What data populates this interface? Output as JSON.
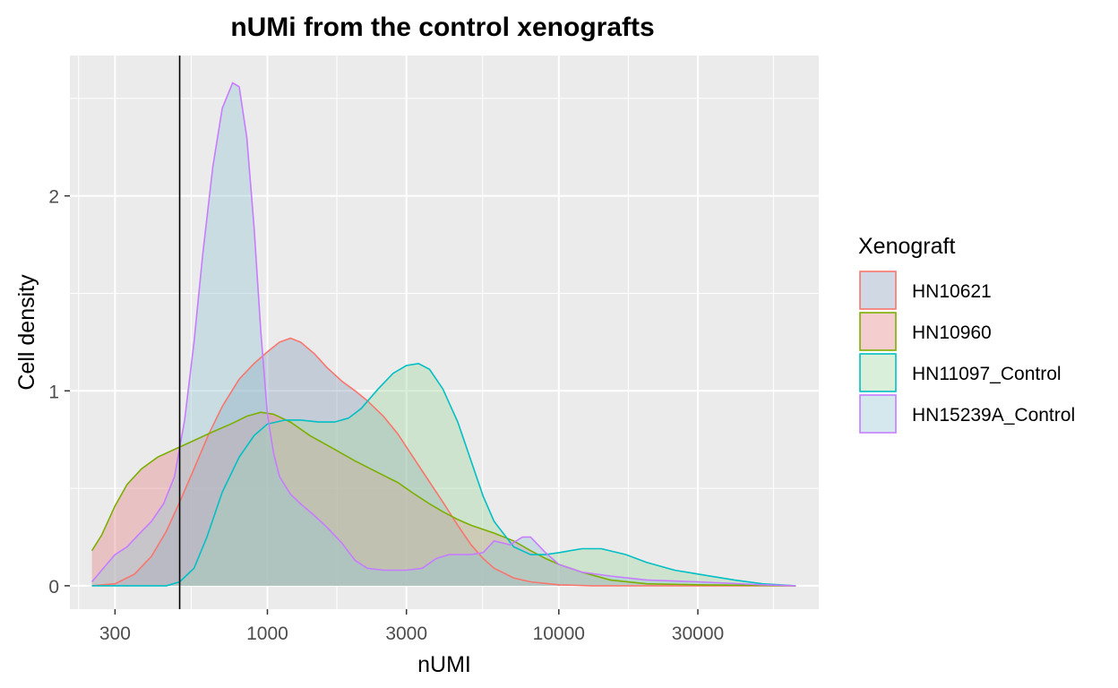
{
  "chart_data": {
    "type": "area",
    "title": "nUMi from the control xenografts",
    "xlabel": "nUMI",
    "ylabel": "Cell density",
    "x_scale": "log10",
    "xlim": [
      210,
      78000
    ],
    "ylim": [
      -0.12,
      2.72
    ],
    "x_ticks": [
      300,
      1000,
      3000,
      10000,
      30000
    ],
    "x_tick_labels": [
      "300",
      "1000",
      "3000",
      "10000",
      "30000"
    ],
    "y_ticks": [
      0,
      1,
      2
    ],
    "y_tick_labels": [
      "0",
      "1",
      "2"
    ],
    "vline_x": 500,
    "grid": true,
    "legend_position": "right",
    "legend_title": "Xenograft",
    "series": [
      {
        "name": "HN10621",
        "line_color": "#F8766D",
        "fill_color": "#8FA1BE",
        "points": [
          [
            250,
            0
          ],
          [
            300,
            0.01
          ],
          [
            350,
            0.06
          ],
          [
            400,
            0.15
          ],
          [
            450,
            0.28
          ],
          [
            500,
            0.43
          ],
          [
            560,
            0.6
          ],
          [
            630,
            0.78
          ],
          [
            700,
            0.92
          ],
          [
            800,
            1.06
          ],
          [
            900,
            1.14
          ],
          [
            1000,
            1.2
          ],
          [
            1100,
            1.25
          ],
          [
            1200,
            1.27
          ],
          [
            1300,
            1.25
          ],
          [
            1450,
            1.19
          ],
          [
            1600,
            1.12
          ],
          [
            1800,
            1.05
          ],
          [
            2000,
            1.0
          ],
          [
            2200,
            0.95
          ],
          [
            2500,
            0.87
          ],
          [
            2800,
            0.78
          ],
          [
            3100,
            0.68
          ],
          [
            3500,
            0.56
          ],
          [
            4000,
            0.43
          ],
          [
            4500,
            0.31
          ],
          [
            5000,
            0.21
          ],
          [
            5500,
            0.14
          ],
          [
            6000,
            0.09
          ],
          [
            7000,
            0.04
          ],
          [
            8000,
            0.02
          ],
          [
            10000,
            0.005
          ],
          [
            13000,
            0
          ],
          [
            65000,
            0
          ]
        ]
      },
      {
        "name": "HN10960",
        "line_color": "#7CAE00",
        "fill_color": "#E58A8C",
        "points": [
          [
            250,
            0.18
          ],
          [
            270,
            0.26
          ],
          [
            300,
            0.41
          ],
          [
            330,
            0.52
          ],
          [
            370,
            0.6
          ],
          [
            420,
            0.66
          ],
          [
            480,
            0.7
          ],
          [
            550,
            0.74
          ],
          [
            650,
            0.79
          ],
          [
            750,
            0.83
          ],
          [
            850,
            0.87
          ],
          [
            950,
            0.89
          ],
          [
            1050,
            0.88
          ],
          [
            1200,
            0.84
          ],
          [
            1400,
            0.77
          ],
          [
            1700,
            0.7
          ],
          [
            2000,
            0.64
          ],
          [
            2400,
            0.58
          ],
          [
            2800,
            0.53
          ],
          [
            3200,
            0.47
          ],
          [
            3600,
            0.42
          ],
          [
            4000,
            0.38
          ],
          [
            4500,
            0.34
          ],
          [
            5000,
            0.31
          ],
          [
            6000,
            0.27
          ],
          [
            7000,
            0.23
          ],
          [
            8000,
            0.18
          ],
          [
            9000,
            0.14
          ],
          [
            10000,
            0.11
          ],
          [
            12000,
            0.07
          ],
          [
            15000,
            0.03
          ],
          [
            20000,
            0.01
          ],
          [
            30000,
            0.005
          ],
          [
            65000,
            0
          ]
        ]
      },
      {
        "name": "HN11097_Control",
        "line_color": "#00BFC4",
        "fill_color": "#A8D8A4",
        "points": [
          [
            250,
            0
          ],
          [
            450,
            0
          ],
          [
            500,
            0.02
          ],
          [
            560,
            0.09
          ],
          [
            620,
            0.25
          ],
          [
            700,
            0.48
          ],
          [
            800,
            0.66
          ],
          [
            900,
            0.77
          ],
          [
            1000,
            0.83
          ],
          [
            1150,
            0.85
          ],
          [
            1300,
            0.85
          ],
          [
            1500,
            0.84
          ],
          [
            1700,
            0.84
          ],
          [
            1900,
            0.86
          ],
          [
            2100,
            0.91
          ],
          [
            2400,
            1.01
          ],
          [
            2700,
            1.09
          ],
          [
            3000,
            1.13
          ],
          [
            3300,
            1.14
          ],
          [
            3600,
            1.11
          ],
          [
            4000,
            1.01
          ],
          [
            4500,
            0.84
          ],
          [
            5000,
            0.64
          ],
          [
            5500,
            0.46
          ],
          [
            6000,
            0.33
          ],
          [
            7000,
            0.2
          ],
          [
            8000,
            0.16
          ],
          [
            9000,
            0.16
          ],
          [
            10000,
            0.17
          ],
          [
            12000,
            0.19
          ],
          [
            14000,
            0.19
          ],
          [
            17000,
            0.16
          ],
          [
            20000,
            0.12
          ],
          [
            25000,
            0.08
          ],
          [
            30000,
            0.06
          ],
          [
            40000,
            0.03
          ],
          [
            50000,
            0.01
          ],
          [
            65000,
            0
          ]
        ]
      },
      {
        "name": "HN15239A_Control",
        "line_color": "#C77CFF",
        "fill_color": "#99C8D4",
        "points": [
          [
            250,
            0.02
          ],
          [
            270,
            0.08
          ],
          [
            300,
            0.16
          ],
          [
            330,
            0.2
          ],
          [
            360,
            0.26
          ],
          [
            400,
            0.33
          ],
          [
            440,
            0.42
          ],
          [
            480,
            0.56
          ],
          [
            520,
            0.85
          ],
          [
            560,
            1.25
          ],
          [
            600,
            1.7
          ],
          [
            650,
            2.15
          ],
          [
            700,
            2.45
          ],
          [
            760,
            2.58
          ],
          [
            800,
            2.56
          ],
          [
            850,
            2.3
          ],
          [
            900,
            1.84
          ],
          [
            950,
            1.3
          ],
          [
            1000,
            0.88
          ],
          [
            1050,
            0.68
          ],
          [
            1100,
            0.56
          ],
          [
            1200,
            0.47
          ],
          [
            1300,
            0.42
          ],
          [
            1450,
            0.36
          ],
          [
            1600,
            0.3
          ],
          [
            1800,
            0.22
          ],
          [
            2000,
            0.13
          ],
          [
            2200,
            0.09
          ],
          [
            2500,
            0.08
          ],
          [
            3000,
            0.08
          ],
          [
            3400,
            0.09
          ],
          [
            3800,
            0.14
          ],
          [
            4200,
            0.16
          ],
          [
            5000,
            0.16
          ],
          [
            5500,
            0.17
          ],
          [
            6000,
            0.23
          ],
          [
            6800,
            0.21
          ],
          [
            7500,
            0.25
          ],
          [
            8000,
            0.25
          ],
          [
            9000,
            0.17
          ],
          [
            10000,
            0.11
          ],
          [
            12000,
            0.07
          ],
          [
            15000,
            0.05
          ],
          [
            20000,
            0.03
          ],
          [
            30000,
            0.02
          ],
          [
            50000,
            0.005
          ],
          [
            65000,
            0
          ]
        ]
      }
    ]
  }
}
